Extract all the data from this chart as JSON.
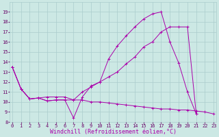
{
  "xlabel": "Windchill (Refroidissement éolien,°C)",
  "bg_color": "#cce8e4",
  "grid_color": "#aacccc",
  "line_color": "#aa00aa",
  "line1_x": [
    0,
    1,
    2,
    3,
    4,
    5,
    6,
    7,
    8,
    9,
    10,
    11,
    12,
    13,
    14,
    15,
    16,
    17,
    18,
    19,
    20,
    21,
    22,
    23
  ],
  "line1_y": [
    13.5,
    11.3,
    10.3,
    10.4,
    10.1,
    10.2,
    10.2,
    8.4,
    10.5,
    11.6,
    12.0,
    14.3,
    15.6,
    16.6,
    17.5,
    18.3,
    18.8,
    19.0,
    16.0,
    13.9,
    11.0,
    8.8,
    null,
    null
  ],
  "line2_x": [
    0,
    1,
    2,
    3,
    4,
    5,
    6,
    7,
    8,
    9,
    10,
    11,
    12,
    13,
    14,
    15,
    16,
    17,
    18,
    19,
    20,
    21,
    22,
    23
  ],
  "line2_y": [
    13.5,
    11.3,
    10.3,
    10.4,
    10.5,
    10.5,
    10.5,
    10.2,
    11.0,
    11.5,
    12.0,
    12.5,
    13.0,
    13.8,
    14.5,
    15.5,
    16.0,
    17.0,
    17.5,
    17.5,
    17.5,
    8.8,
    null,
    null
  ],
  "line3_x": [
    0,
    1,
    2,
    3,
    4,
    5,
    6,
    7,
    8,
    9,
    10,
    11,
    12,
    13,
    14,
    15,
    16,
    17,
    18,
    19,
    20,
    21,
    22,
    23
  ],
  "line3_y": [
    13.5,
    11.3,
    10.3,
    10.4,
    10.1,
    10.2,
    10.2,
    10.2,
    10.2,
    10.0,
    10.0,
    9.9,
    9.8,
    9.7,
    9.6,
    9.5,
    9.4,
    9.3,
    9.3,
    9.2,
    9.2,
    9.1,
    9.0,
    8.8
  ],
  "ylim": [
    8,
    20
  ],
  "xlim": [
    -0.3,
    23.3
  ],
  "yticks": [
    8,
    9,
    10,
    11,
    12,
    13,
    14,
    15,
    16,
    17,
    18,
    19
  ],
  "xticks": [
    0,
    1,
    2,
    3,
    4,
    5,
    6,
    7,
    8,
    9,
    10,
    11,
    12,
    13,
    14,
    15,
    16,
    17,
    18,
    19,
    20,
    21,
    22,
    23
  ],
  "tick_fontsize": 5,
  "label_fontsize": 6
}
